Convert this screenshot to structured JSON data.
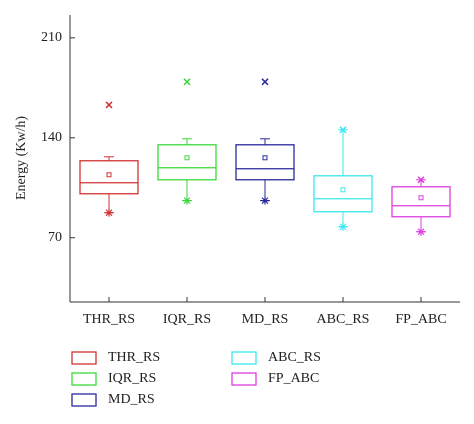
{
  "chart_data": {
    "type": "box",
    "y_label": "Energy (Kw/h)",
    "categories": [
      "THR_RS",
      "IQR_RS",
      "MD_RS",
      "ABC_RS",
      "FP_ABC"
    ],
    "ylim": [
      25,
      226
    ],
    "yticks": [
      70,
      140,
      210
    ],
    "series": [
      {
        "name": "THR_RS",
        "color": "#d23232",
        "whisker_low": 87.5,
        "q1": 100.8,
        "median": 108.5,
        "q3": 123.9,
        "whisker_high": 126.7,
        "mean": 114.1,
        "min": 87.5,
        "max": 163
      },
      {
        "name": "IQR_RS",
        "color": "#3ad83a",
        "whisker_low": 96,
        "q1": 110.6,
        "median": 119,
        "q3": 135.1,
        "whisker_high": 139.3,
        "mean": 126,
        "min": 96,
        "max": 179.2
      },
      {
        "name": "MD_RS",
        "color": "#28289e",
        "whisker_low": 96,
        "q1": 110.6,
        "median": 118.3,
        "q3": 135.1,
        "whisker_high": 139.3,
        "mean": 126,
        "min": 96,
        "max": 179.2
      },
      {
        "name": "ABC_RS",
        "color": "#3ae8ee",
        "whisker_low": 77.7,
        "q1": 88.2,
        "median": 97.3,
        "q3": 113.4,
        "whisker_high": 145.6,
        "mean": 103.6,
        "min": 77.7,
        "max": 145.6
      },
      {
        "name": "FP_ABC",
        "color": "#dd3ddd",
        "whisker_low": 74.2,
        "q1": 84.7,
        "median": 92.4,
        "q3": 105.7,
        "whisker_high": 110.6,
        "mean": 98,
        "min": 74.2,
        "max": 110.6
      }
    ]
  }
}
